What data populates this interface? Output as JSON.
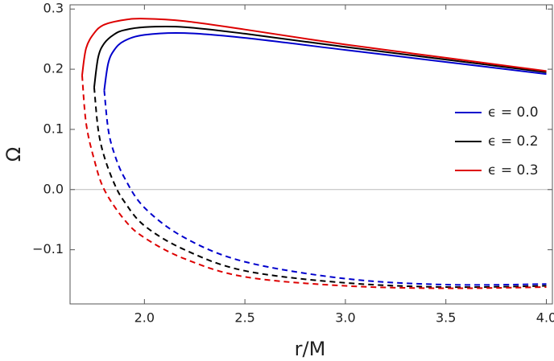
{
  "chart_data": {
    "type": "line",
    "x_label": "r/M",
    "y_label": "Ω",
    "xlim": [
      1.63,
      4.03
    ],
    "ylim": [
      -0.19,
      0.307
    ],
    "xticks": [
      {
        "value": 2,
        "label": "2.0"
      },
      2.5,
      {
        "value": 3,
        "label": "3.0"
      },
      3.5,
      {
        "value": 4,
        "label": "4.0"
      }
    ],
    "yticks": [
      {
        "value": -0.1,
        "label": "−0.1"
      },
      {
        "value": 0,
        "label": "0.0"
      },
      0.1,
      0.2,
      0.3
    ],
    "zero_line": true,
    "legend": "right",
    "series": [
      {
        "name": "ϵ = 0.0",
        "color": "#0000cc",
        "x": [
          1.8,
          1.82,
          1.85,
          1.9,
          2.0,
          2.2,
          2.5,
          3.0,
          3.5,
          4.0
        ],
        "values": [
          0.165,
          0.21,
          0.232,
          0.247,
          0.257,
          0.26,
          0.252,
          0.232,
          0.212,
          0.192
        ],
        "lower_values": [
          0.165,
          0.1,
          0.06,
          0.02,
          -0.03,
          -0.08,
          -0.12,
          -0.148,
          -0.158,
          -0.157
        ]
      },
      {
        "name": "ϵ = 0.2",
        "color": "#000000",
        "x": [
          1.75,
          1.77,
          1.8,
          1.85,
          1.9,
          2.0,
          2.2,
          2.5,
          3.0,
          3.5,
          4.0
        ],
        "values": [
          0.17,
          0.22,
          0.243,
          0.258,
          0.265,
          0.27,
          0.27,
          0.259,
          0.237,
          0.216,
          0.195
        ],
        "lower_values": [
          0.17,
          0.1,
          0.055,
          0.01,
          -0.02,
          -0.06,
          -0.1,
          -0.135,
          -0.155,
          -0.162,
          -0.16
        ]
      },
      {
        "name": "ϵ = 0.3",
        "color": "#dd0000",
        "x": [
          1.69,
          1.71,
          1.75,
          1.8,
          1.9,
          2.0,
          2.2,
          2.5,
          3.0,
          3.5,
          4.0
        ],
        "values": [
          0.19,
          0.235,
          0.26,
          0.274,
          0.282,
          0.284,
          0.28,
          0.266,
          0.241,
          0.219,
          0.197
        ],
        "lower_values": [
          0.19,
          0.11,
          0.05,
          0.0,
          -0.05,
          -0.08,
          -0.115,
          -0.145,
          -0.16,
          -0.164,
          -0.162
        ]
      }
    ]
  }
}
